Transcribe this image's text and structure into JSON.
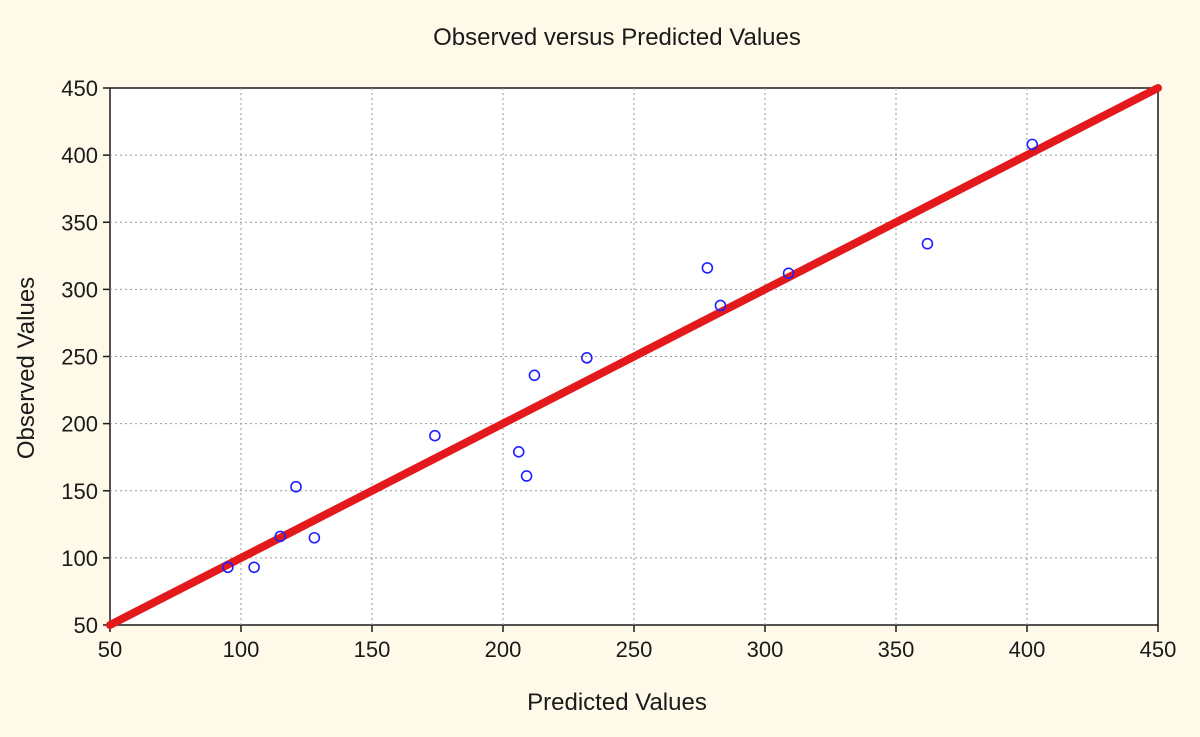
{
  "chart_data": {
    "type": "scatter",
    "title": "Observed versus Predicted Values",
    "xlabel": "Predicted Values",
    "ylabel": "Observed Values",
    "xlim": [
      50,
      450
    ],
    "ylim": [
      50,
      450
    ],
    "x_ticks": [
      50,
      100,
      150,
      200,
      250,
      300,
      350,
      400,
      450
    ],
    "y_ticks": [
      50,
      100,
      150,
      200,
      250,
      300,
      350,
      400,
      450
    ],
    "grid": true,
    "point_color": "#2020ff",
    "line_color": "#e3191c",
    "series": [
      {
        "type": "scatter",
        "points": [
          {
            "x": 95,
            "y": 93
          },
          {
            "x": 105,
            "y": 93
          },
          {
            "x": 115,
            "y": 116
          },
          {
            "x": 121,
            "y": 153
          },
          {
            "x": 128,
            "y": 115
          },
          {
            "x": 174,
            "y": 191
          },
          {
            "x": 206,
            "y": 179
          },
          {
            "x": 209,
            "y": 161
          },
          {
            "x": 212,
            "y": 236
          },
          {
            "x": 232,
            "y": 249
          },
          {
            "x": 278,
            "y": 316
          },
          {
            "x": 283,
            "y": 288
          },
          {
            "x": 309,
            "y": 312
          },
          {
            "x": 362,
            "y": 334
          },
          {
            "x": 402,
            "y": 408
          }
        ]
      },
      {
        "type": "line",
        "points": [
          {
            "x": 50,
            "y": 50
          },
          {
            "x": 450,
            "y": 450
          }
        ]
      }
    ]
  }
}
